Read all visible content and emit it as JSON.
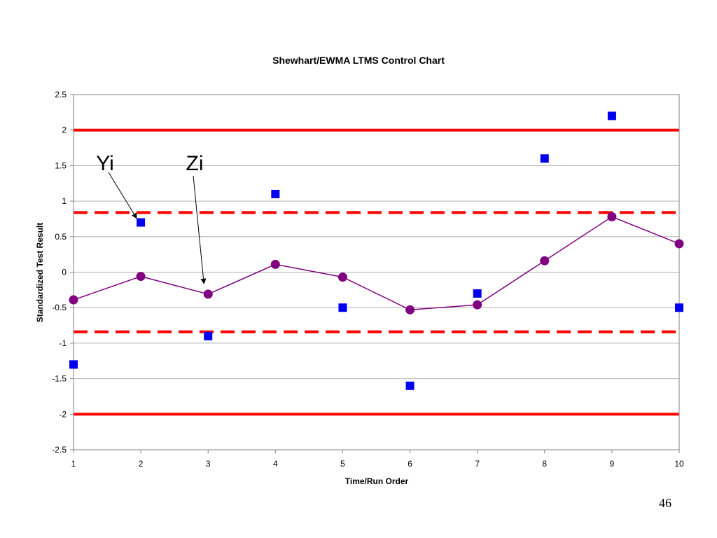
{
  "page_number": "46",
  "chart_data": {
    "type": "scatter",
    "title": "Shewhart/EWMA LTMS Control Chart",
    "xlabel": "Time/Run Order",
    "ylabel": "Standardized Test Result",
    "x": [
      1,
      2,
      3,
      4,
      5,
      6,
      7,
      8,
      9,
      10
    ],
    "xlim": [
      1,
      10
    ],
    "ylim": [
      -2.5,
      2.5
    ],
    "xticks": [
      "1",
      "2",
      "3",
      "4",
      "5",
      "6",
      "7",
      "8",
      "9",
      "10"
    ],
    "yticks": [
      "2.5",
      "2",
      "1.5",
      "1",
      "0.5",
      "0",
      "-0.5",
      "-1",
      "-1.5",
      "-2",
      "-2.5"
    ],
    "grid": true,
    "series": [
      {
        "values": [
          -1.3,
          0.7,
          -0.9,
          1.1,
          -0.5,
          -1.6,
          -0.3,
          1.6,
          2.2,
          -0.5
        ],
        "marker": "square",
        "color": "#0000ee"
      },
      {
        "values": [
          -0.39,
          -0.06,
          -0.31,
          0.11,
          -0.07,
          -0.53,
          -0.46,
          0.16,
          0.78,
          0.4
        ],
        "marker": "circle",
        "line": true,
        "color": "#800080"
      }
    ],
    "reference_lines": [
      {
        "value": 2.0,
        "style": "solid",
        "color": "#ff0000"
      },
      {
        "value": -2.0,
        "style": "solid",
        "color": "#ff0000"
      },
      {
        "value": 0.84,
        "style": "dashed",
        "color": "#ff0000"
      },
      {
        "value": -0.84,
        "style": "dashed",
        "color": "#ff0000"
      }
    ],
    "annotations": [
      {
        "text": "Yi",
        "target_x": 2,
        "target_y": 0.7
      },
      {
        "text": "Zi",
        "target_x": 3,
        "target_y": -0.22
      }
    ]
  }
}
